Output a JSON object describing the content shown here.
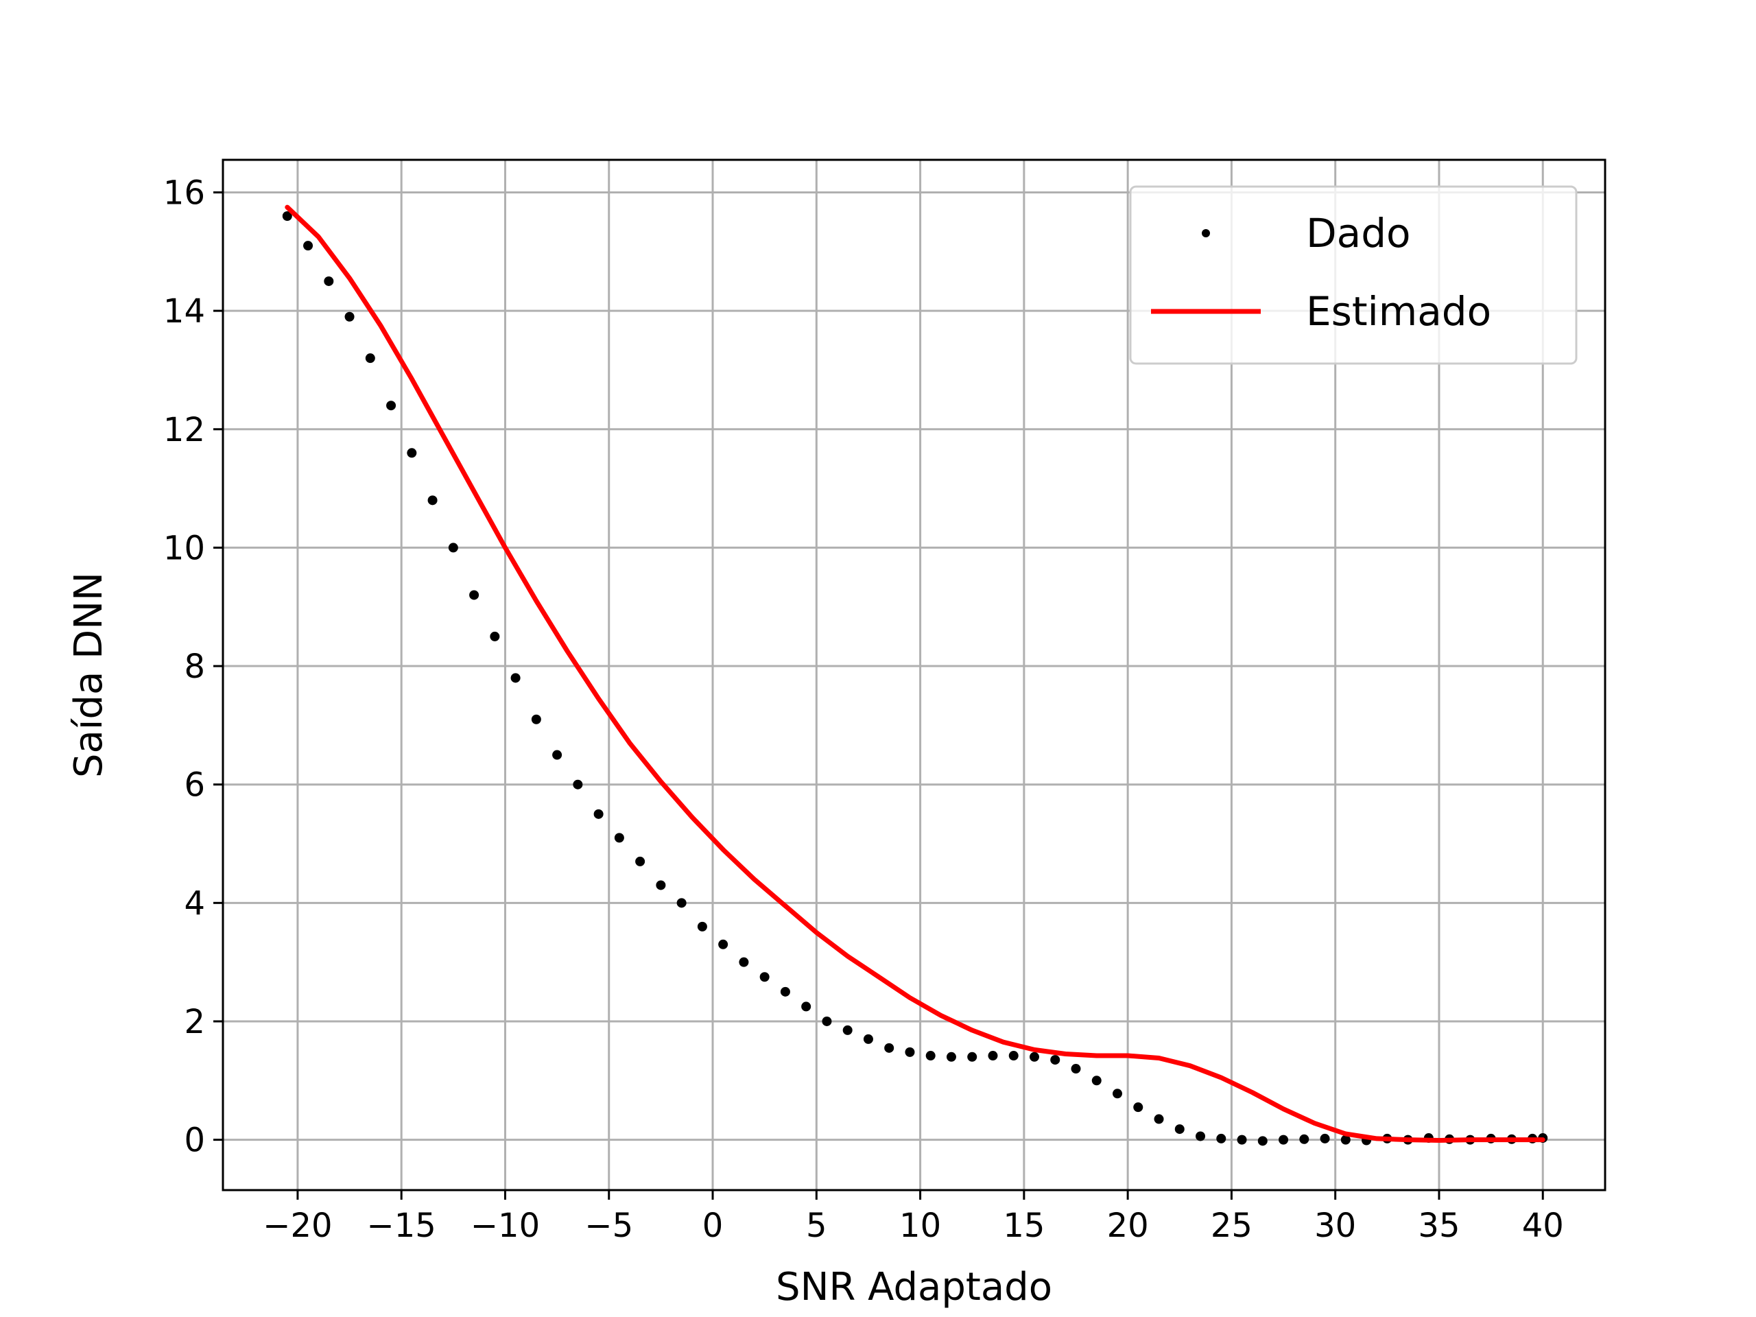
{
  "chart_data": {
    "type": "scatter",
    "xlabel": "SNR Adaptado",
    "ylabel": "Saída DNN",
    "xlim": [
      -23.6,
      43.0
    ],
    "ylim": [
      -0.85,
      16.55
    ],
    "xticks": [
      -20,
      -15,
      -10,
      -5,
      0,
      5,
      10,
      15,
      20,
      25,
      30,
      35,
      40
    ],
    "xtick_labels": [
      "−20",
      "−15",
      "−10",
      "−5",
      "0",
      "5",
      "10",
      "15",
      "20",
      "25",
      "30",
      "35",
      "40"
    ],
    "yticks": [
      0,
      2,
      4,
      6,
      8,
      10,
      12,
      14,
      16
    ],
    "ytick_labels": [
      "0",
      "2",
      "4",
      "6",
      "8",
      "10",
      "12",
      "14",
      "16"
    ],
    "grid": true,
    "legend_position": "top-right",
    "series": [
      {
        "name": "Dado",
        "kind": "scatter",
        "color": "#000000",
        "x": [
          -20.5,
          -19.5,
          -18.5,
          -17.5,
          -16.5,
          -15.5,
          -14.5,
          -13.5,
          -12.5,
          -11.5,
          -10.5,
          -9.5,
          -8.5,
          -7.5,
          -6.5,
          -5.5,
          -4.5,
          -3.5,
          -2.5,
          -1.5,
          -0.5,
          0.5,
          1.5,
          2.5,
          3.5,
          4.5,
          5.5,
          6.5,
          7.5,
          8.5,
          9.5,
          10.5,
          11.5,
          12.5,
          13.5,
          14.5,
          15.5,
          16.5,
          17.5,
          18.5,
          19.5,
          20.5,
          21.5,
          22.5,
          23.5,
          24.5,
          25.5,
          26.5,
          27.5,
          28.5,
          29.5,
          30.5,
          31.5,
          32.5,
          33.5,
          34.5,
          35.5,
          36.5,
          37.5,
          38.5,
          39.5,
          40.0
        ],
        "y": [
          15.6,
          15.1,
          14.5,
          13.9,
          13.2,
          12.4,
          11.6,
          10.8,
          10.0,
          9.2,
          8.5,
          7.8,
          7.1,
          6.5,
          6.0,
          5.5,
          5.1,
          4.7,
          4.3,
          4.0,
          3.6,
          3.3,
          3.0,
          2.75,
          2.5,
          2.25,
          2.0,
          1.85,
          1.7,
          1.55,
          1.48,
          1.42,
          1.4,
          1.4,
          1.42,
          1.42,
          1.4,
          1.35,
          1.2,
          1.0,
          0.78,
          0.55,
          0.35,
          0.18,
          0.06,
          0.02,
          0.0,
          -0.02,
          0.0,
          0.01,
          0.02,
          0.0,
          -0.01,
          0.02,
          0.0,
          0.03,
          0.01,
          0.0,
          0.02,
          0.01,
          0.02,
          0.03
        ]
      },
      {
        "name": "Estimado",
        "kind": "line",
        "color": "#ff0000",
        "x": [
          -20.5,
          -19,
          -17.5,
          -16,
          -14.5,
          -13,
          -11.5,
          -10,
          -8.5,
          -7,
          -5.5,
          -4,
          -2.5,
          -1,
          0.5,
          2,
          3.5,
          5,
          6.5,
          8,
          9.5,
          11,
          12.5,
          14,
          15.5,
          17,
          18.5,
          20,
          21.5,
          23,
          24.5,
          26,
          27.5,
          29,
          30.5,
          32,
          33.5,
          35,
          36.5,
          38,
          40
        ],
        "y": [
          15.75,
          15.25,
          14.55,
          13.75,
          12.85,
          11.9,
          10.95,
          10.0,
          9.1,
          8.25,
          7.45,
          6.7,
          6.05,
          5.45,
          4.9,
          4.4,
          3.95,
          3.5,
          3.1,
          2.75,
          2.4,
          2.1,
          1.85,
          1.65,
          1.52,
          1.45,
          1.42,
          1.42,
          1.38,
          1.25,
          1.05,
          0.8,
          0.52,
          0.28,
          0.1,
          0.02,
          0.0,
          -0.01,
          0.0,
          0.0,
          0.0
        ]
      }
    ]
  }
}
